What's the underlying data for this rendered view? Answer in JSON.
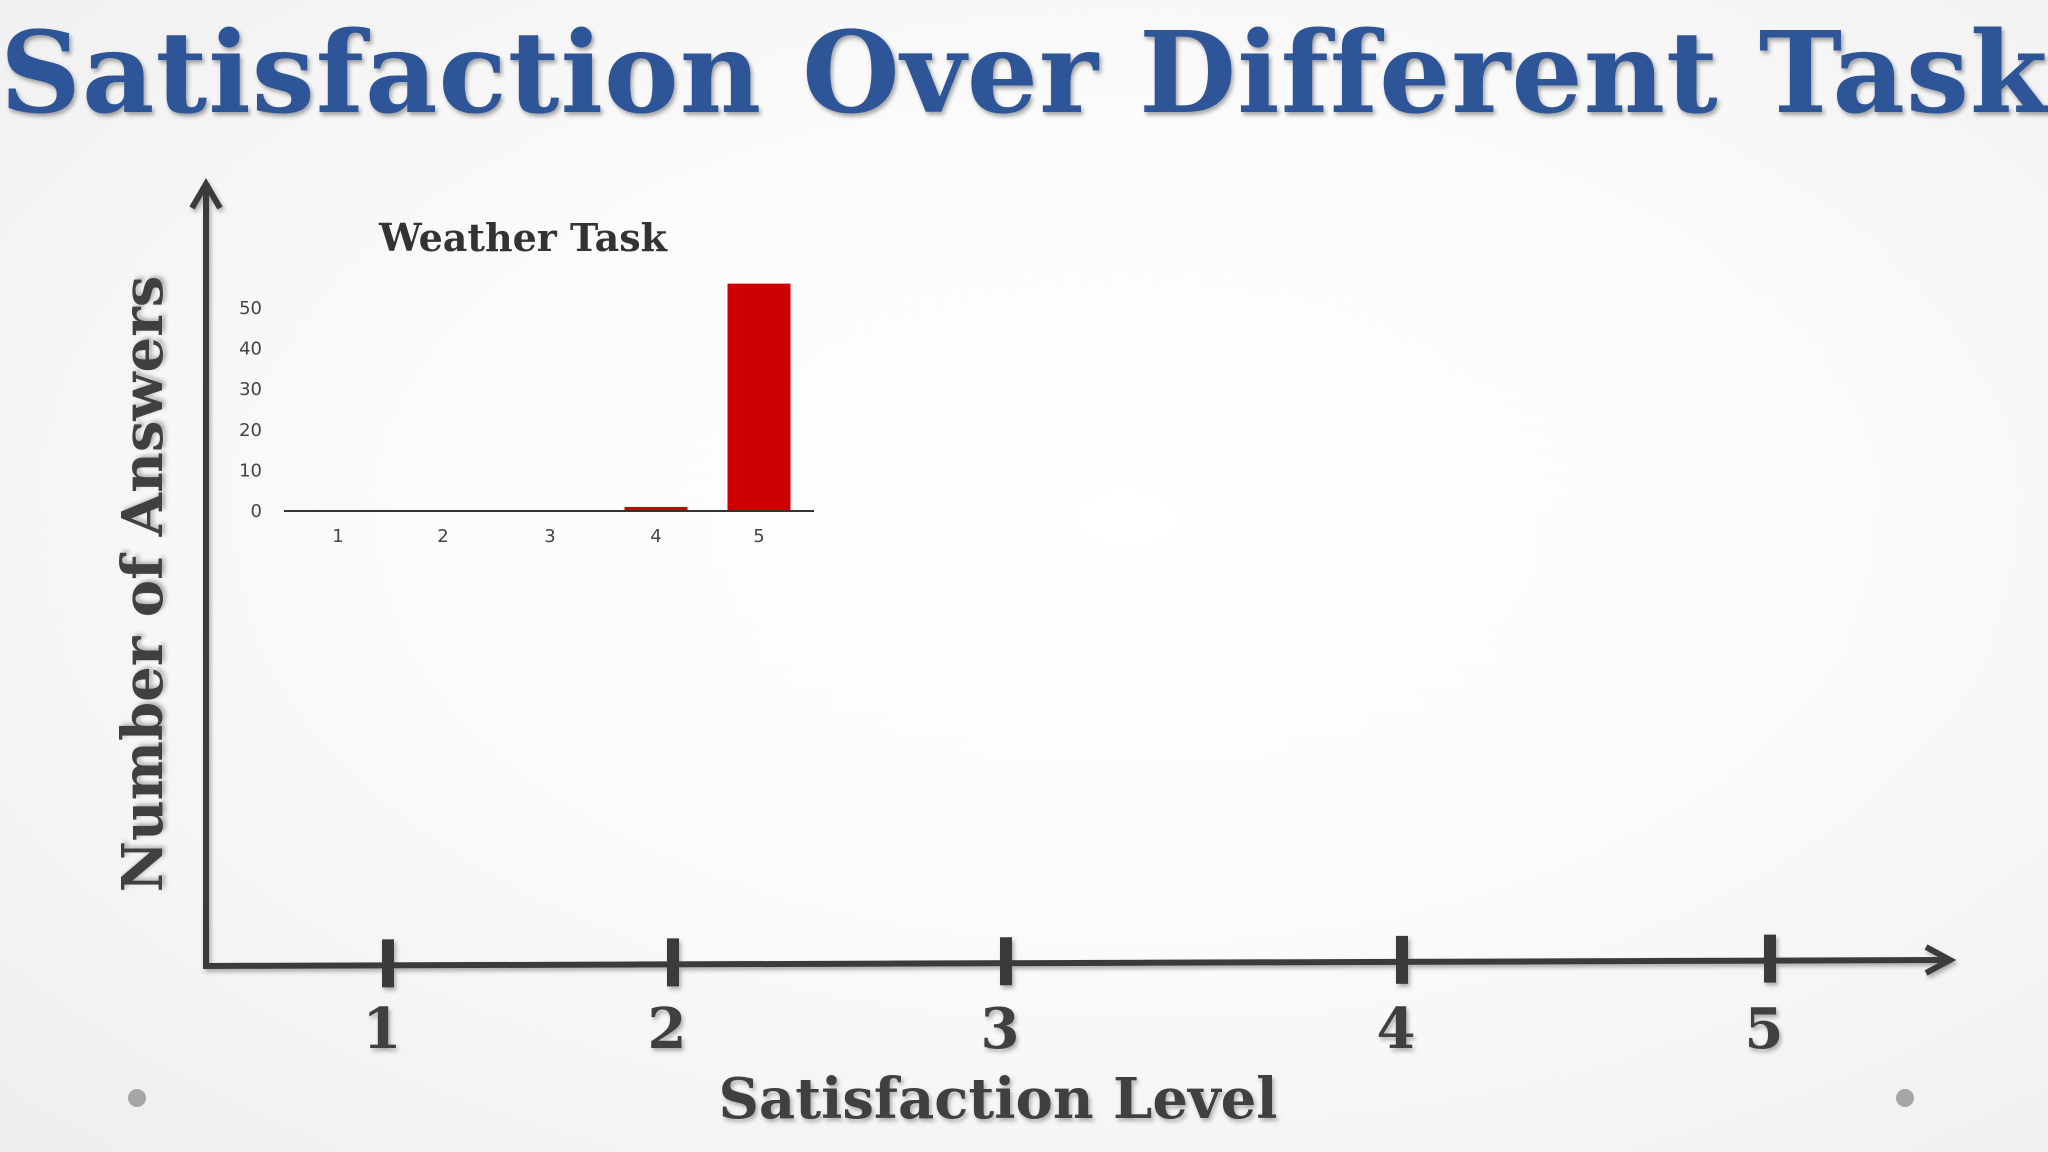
{
  "slide": {
    "title": "Satisfaction Over Different Tasks"
  },
  "colors": {
    "title": "#2e5597",
    "axis": "#3b3b3b",
    "bar": "#cc0000"
  },
  "chart_data": [
    {
      "type": "axes",
      "xlabel": "Satisfaction Level",
      "ylabel": "Number of Answers",
      "x_ticks": [
        "1",
        "2",
        "3",
        "4",
        "5"
      ]
    },
    {
      "type": "bar",
      "title": "Weather Task",
      "categories": [
        "1",
        "2",
        "3",
        "4",
        "5"
      ],
      "values": [
        0,
        0,
        0,
        1,
        56
      ],
      "y_ticks": [
        0,
        10,
        20,
        30,
        40,
        50
      ],
      "ylim": [
        0,
        56
      ],
      "grid": false
    }
  ]
}
